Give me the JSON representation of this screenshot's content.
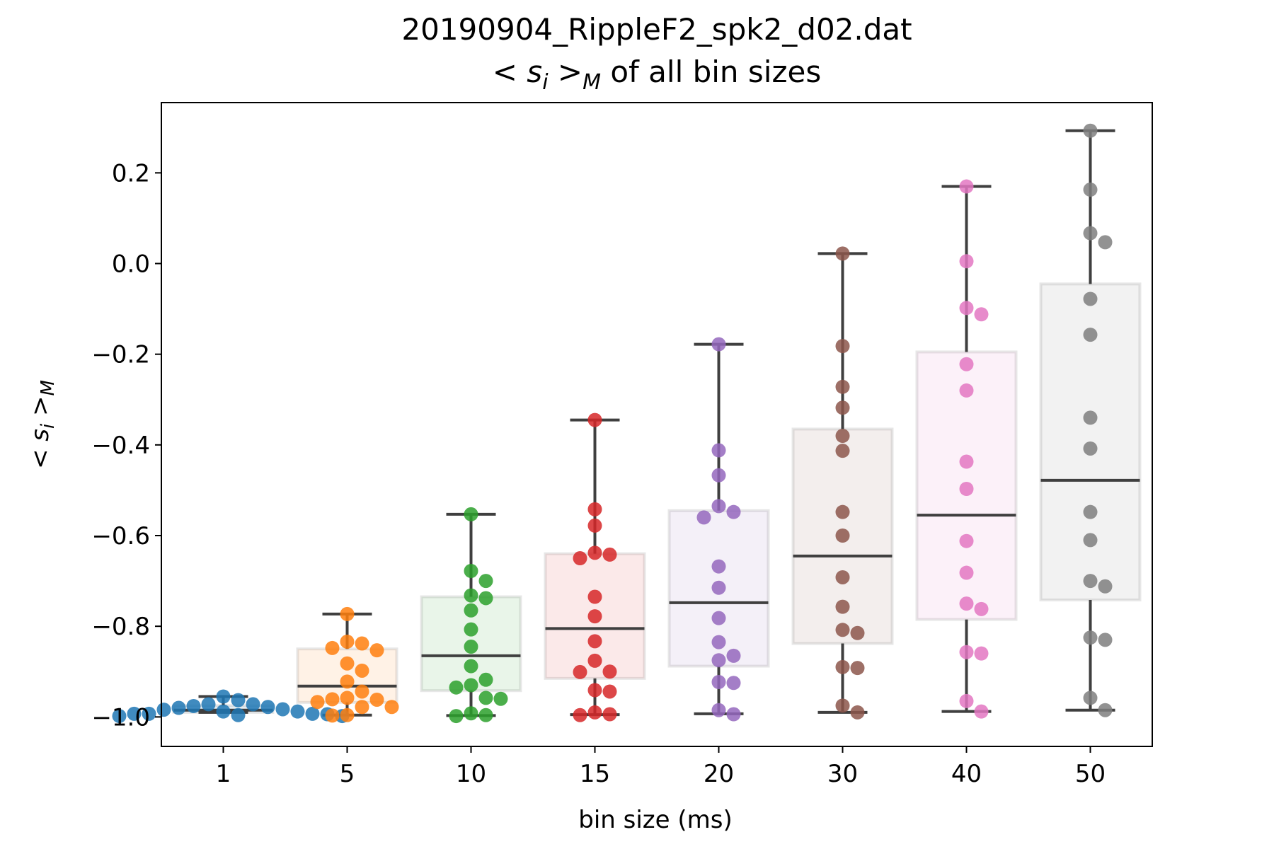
{
  "chart_data": {
    "type": "box",
    "title": {
      "line1": "20190904_RippleF2_spk2_d02.dat",
      "line2_prefix": "< s",
      "line2_sub1": "i",
      "line2_mid": " >",
      "line2_sub2": "M",
      "line2_suffix": " of all bin sizes"
    },
    "xlabel": "bin size (ms)",
    "ylabel": {
      "prefix": "< s",
      "sub1": "i",
      "mid": " >",
      "sub2": "M"
    },
    "categories": [
      "1",
      "5",
      "10",
      "15",
      "20",
      "30",
      "40",
      "50"
    ],
    "ylim": [
      -1.065,
      0.355
    ],
    "yticks": [
      0.2,
      0.0,
      -0.2,
      -0.4,
      -0.6,
      -0.8,
      -1.0
    ],
    "ytick_labels": [
      "0.2",
      "0.0",
      "−0.2",
      "−0.4",
      "−0.6",
      "−0.8",
      "−1.0"
    ],
    "legend": "none",
    "grid": false,
    "series": [
      {
        "color": "#1f77b4",
        "box": {
          "q1": -0.99,
          "median": -0.985,
          "q3": -0.975,
          "whisker_low": -0.99,
          "whisker_high": -0.955
        },
        "points": [
          -0.972,
          -0.976,
          -0.98,
          -0.984,
          -0.988,
          -0.993,
          -0.996,
          -0.994,
          -0.963,
          -0.955,
          -0.998,
          -0.998,
          -0.993,
          -0.993,
          -0.972,
          -0.978,
          -0.983,
          -0.988
        ]
      },
      {
        "color": "#ff7f0e",
        "box": {
          "q1": -0.968,
          "median": -0.932,
          "q3": -0.85,
          "whisker_low": -0.996,
          "whisker_high": -0.773
        },
        "points": [
          -0.773,
          -0.834,
          -0.838,
          -0.853,
          -0.848,
          -0.882,
          -0.898,
          -0.922,
          -0.944,
          -0.958,
          -0.961,
          -0.962,
          -0.967,
          -0.978,
          -0.978,
          -0.996,
          -0.997
        ]
      },
      {
        "color": "#2ca02c",
        "box": {
          "q1": -0.942,
          "median": -0.865,
          "q3": -0.735,
          "whisker_low": -0.997,
          "whisker_high": -0.553
        },
        "points": [
          -0.553,
          -0.678,
          -0.7,
          -0.732,
          -0.738,
          -0.765,
          -0.807,
          -0.845,
          -0.888,
          -0.918,
          -0.93,
          -0.935,
          -0.958,
          -0.96,
          -0.992,
          -0.996,
          -0.998
        ]
      },
      {
        "color": "#d62728",
        "box": {
          "q1": -0.915,
          "median": -0.805,
          "q3": -0.64,
          "whisker_low": -0.995,
          "whisker_high": -0.345
        },
        "points": [
          -0.345,
          -0.542,
          -0.578,
          -0.638,
          -0.642,
          -0.65,
          -0.735,
          -0.778,
          -0.833,
          -0.876,
          -0.9,
          -0.901,
          -0.941,
          -0.944,
          -0.99,
          -0.994,
          -0.996
        ]
      },
      {
        "color": "#9467bd",
        "box": {
          "q1": -0.888,
          "median": -0.748,
          "q3": -0.545,
          "whisker_low": -0.993,
          "whisker_high": -0.178
        },
        "points": [
          -0.178,
          -0.412,
          -0.467,
          -0.535,
          -0.548,
          -0.56,
          -0.668,
          -0.715,
          -0.782,
          -0.835,
          -0.865,
          -0.875,
          -0.923,
          -0.925,
          -0.985,
          -0.994
        ]
      },
      {
        "color": "#8c564b",
        "box": {
          "q1": -0.838,
          "median": -0.645,
          "q3": -0.365,
          "whisker_low": -0.99,
          "whisker_high": 0.022
        },
        "points": [
          0.022,
          -0.182,
          -0.272,
          -0.318,
          -0.38,
          -0.413,
          -0.548,
          -0.6,
          -0.692,
          -0.757,
          -0.808,
          -0.815,
          -0.89,
          -0.892,
          -0.975,
          -0.99
        ]
      },
      {
        "color": "#e377c2",
        "box": {
          "q1": -0.785,
          "median": -0.555,
          "q3": -0.195,
          "whisker_low": -0.988,
          "whisker_high": 0.17
        },
        "points": [
          0.17,
          0.005,
          -0.098,
          -0.112,
          -0.222,
          -0.28,
          -0.437,
          -0.497,
          -0.612,
          -0.682,
          -0.75,
          -0.762,
          -0.857,
          -0.86,
          -0.965,
          -0.988
        ]
      },
      {
        "color": "#7f7f7f",
        "box": {
          "q1": -0.742,
          "median": -0.478,
          "q3": -0.045,
          "whisker_low": -0.985,
          "whisker_high": 0.293
        },
        "points": [
          0.293,
          0.163,
          0.067,
          0.047,
          -0.078,
          -0.157,
          -0.34,
          -0.408,
          -0.548,
          -0.61,
          -0.7,
          -0.712,
          -0.825,
          -0.83,
          -0.958,
          -0.985
        ]
      }
    ]
  }
}
